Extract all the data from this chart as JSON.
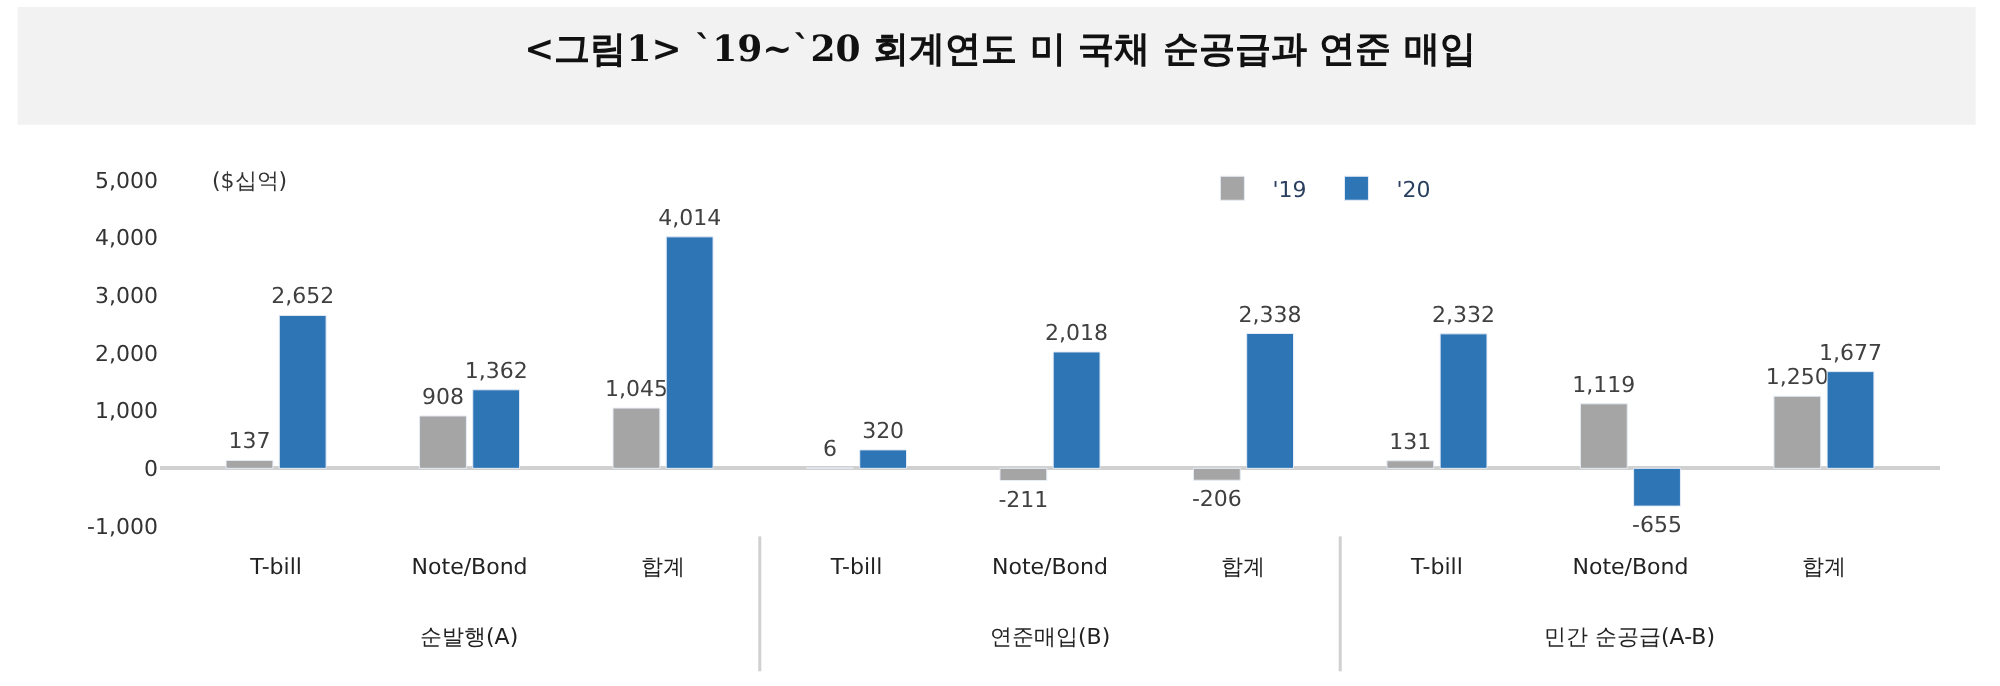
{
  "chart_data": {
    "type": "bar",
    "title": "<그림1> `19~`20 회계연도 미 국채 순공급과 연준 매입",
    "ylabel": "($십억)",
    "categories": [
      "T-bill",
      "Note/Bond",
      "합계",
      "T-bill",
      "Note/Bond",
      "합계",
      "T-bill",
      "Note/Bond",
      "합계"
    ],
    "series": [
      {
        "name": "'19",
        "color": "#a5a5a5",
        "values": [
          137,
          908,
          1045,
          6,
          -211,
          -206,
          131,
          1119,
          1250
        ],
        "value_labels": [
          "137",
          "908",
          "1,045",
          "6",
          "-211",
          "-206",
          "131",
          "1,119",
          "1,250"
        ]
      },
      {
        "name": "'20",
        "color": "#2e75b6",
        "values": [
          2652,
          1362,
          4014,
          320,
          2018,
          2338,
          2332,
          -655,
          1677
        ],
        "value_labels": [
          "2,652",
          "1,362",
          "4,014",
          "320",
          "2,018",
          "2,338",
          "2,332",
          "-655",
          "1,677"
        ]
      }
    ],
    "annotations": [
      "순발행(A)",
      "연준매입(B)",
      "민간 순공급(A-B)"
    ],
    "ylim": [
      -1000,
      5000
    ],
    "yticks": [
      {
        "value": -1000,
        "label": "-1,000"
      },
      0,
      {
        "value": 1000,
        "label": "1,000"
      },
      {
        "value": 2000,
        "label": "2,000"
      },
      {
        "value": 3000,
        "label": "3,000"
      },
      {
        "value": 4000,
        "label": "4,000"
      },
      {
        "value": 5000,
        "label": "5,000"
      }
    ],
    "legend": "top right"
  }
}
